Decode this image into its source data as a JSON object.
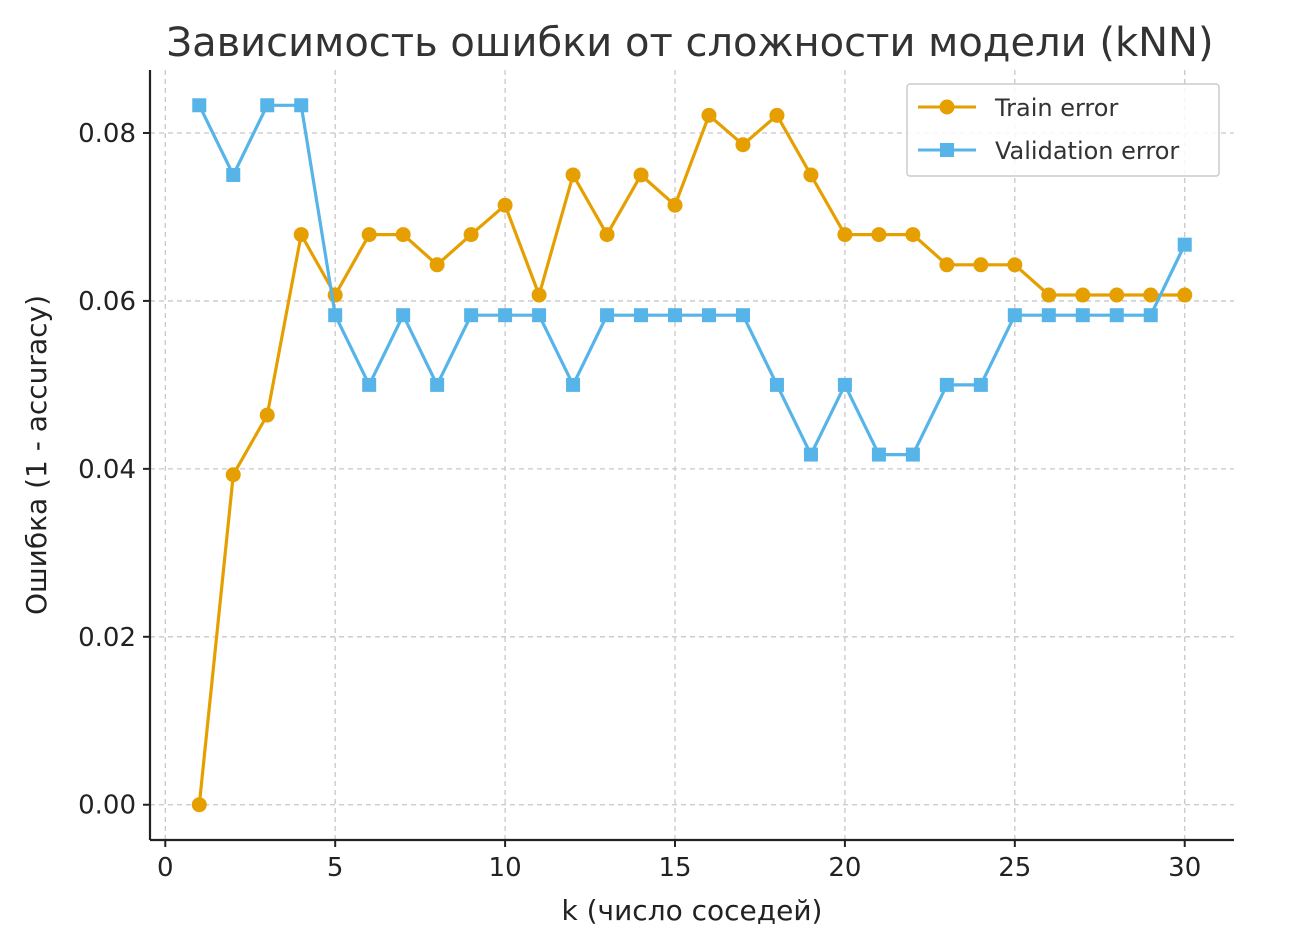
{
  "chart_data": {
    "type": "line",
    "title": "Зависимость ошибки от сложности модели (kNN)",
    "xlabel": "k (число соседей)",
    "ylabel": "Ошибка (1 - accuracy)",
    "xlim": [
      -0.45,
      31.45
    ],
    "ylim": [
      -0.0042,
      0.0875
    ],
    "xticks": [
      0,
      5,
      10,
      15,
      20,
      25,
      30
    ],
    "yticks": [
      0.0,
      0.02,
      0.04,
      0.06,
      0.08
    ],
    "ytick_labels": [
      "0.00",
      "0.02",
      "0.04",
      "0.06",
      "0.08"
    ],
    "grid": true,
    "legend_position": "top-right",
    "x": [
      1,
      2,
      3,
      4,
      5,
      6,
      7,
      8,
      9,
      10,
      11,
      12,
      13,
      14,
      15,
      16,
      17,
      18,
      19,
      20,
      21,
      22,
      23,
      24,
      25,
      26,
      27,
      28,
      29,
      30
    ],
    "series": [
      {
        "name": "Train error",
        "color": "#E69F00",
        "marker": "circle",
        "values": [
          0.0,
          0.0393,
          0.0464,
          0.0679,
          0.0607,
          0.0679,
          0.0679,
          0.0643,
          0.0679,
          0.0714,
          0.0607,
          0.075,
          0.0679,
          0.075,
          0.0714,
          0.0821,
          0.0786,
          0.0821,
          0.075,
          0.0679,
          0.0679,
          0.0679,
          0.0643,
          0.0643,
          0.0643,
          0.0607,
          0.0607,
          0.0607,
          0.0607,
          0.0607
        ]
      },
      {
        "name": "Validation error",
        "color": "#56B4E9",
        "marker": "square",
        "values": [
          0.0833,
          0.075,
          0.0833,
          0.0833,
          0.0583,
          0.05,
          0.0583,
          0.05,
          0.0583,
          0.0583,
          0.0583,
          0.05,
          0.0583,
          0.0583,
          0.0583,
          0.0583,
          0.0583,
          0.05,
          0.0417,
          0.05,
          0.0417,
          0.0417,
          0.05,
          0.05,
          0.0583,
          0.0583,
          0.0583,
          0.0583,
          0.0583,
          0.0667
        ]
      }
    ]
  }
}
